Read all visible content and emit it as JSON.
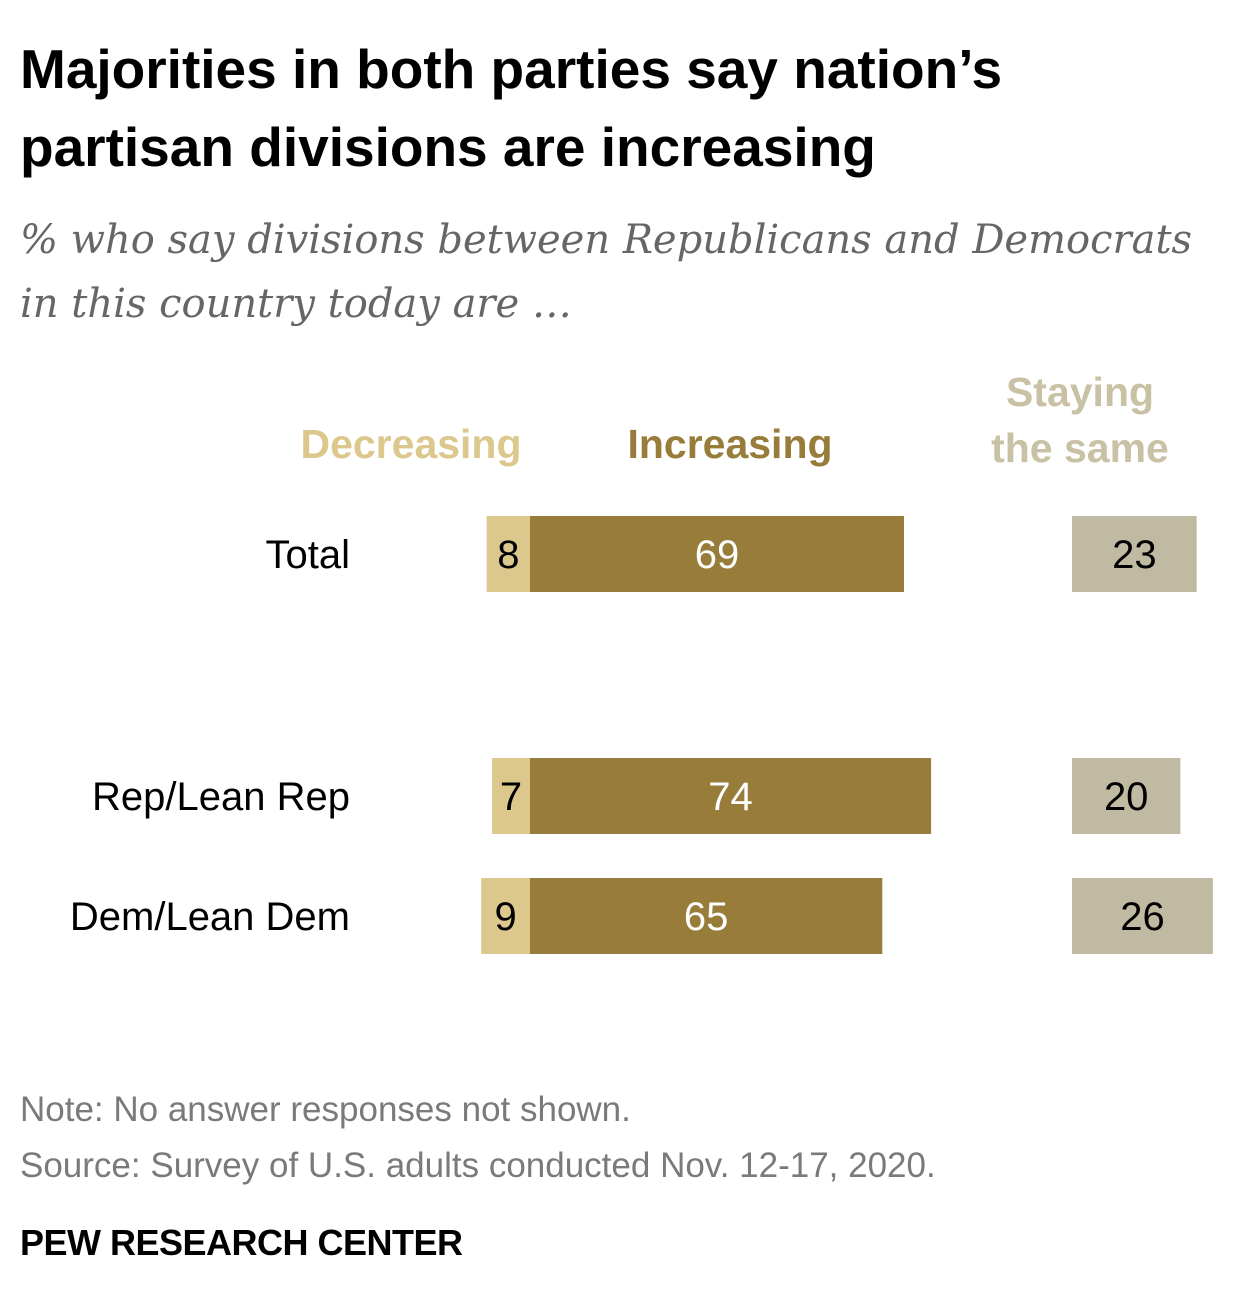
{
  "title": "Majorities in both parties say nation’s partisan divisions are increasing",
  "subtitle": "% who say divisions between Republicans and Democrats in this country today are …",
  "legend": {
    "decreasing": "Decreasing",
    "increasing": "Increasing",
    "staying_line1": "Staying",
    "staying_line2": "the same"
  },
  "colors": {
    "decreasing": "#dcc78d",
    "increasing": "#987d3a",
    "staying": "#c0baa2",
    "staying_legend": "#c8c1a3"
  },
  "chart_data": {
    "type": "bar",
    "categories": [
      "Total",
      "Rep/Lean Rep",
      "Dem/Lean Dem"
    ],
    "series": [
      {
        "name": "Decreasing",
        "values": [
          8,
          7,
          9
        ]
      },
      {
        "name": "Increasing",
        "values": [
          69,
          74,
          65
        ]
      },
      {
        "name": "Staying the same",
        "values": [
          23,
          20,
          26
        ]
      }
    ],
    "title": "Majorities in both parties say nation’s partisan divisions are increasing",
    "subtitle": "% who say divisions between Republicans and Democrats in this country today are …",
    "xlabel": "",
    "ylabel": "",
    "grid": false,
    "legend_placement": "top"
  },
  "note": "Note: No answer responses not shown.",
  "source": "Source: Survey of U.S. adults conducted Nov. 12-17, 2020.",
  "brand": "PEW RESEARCH CENTER"
}
